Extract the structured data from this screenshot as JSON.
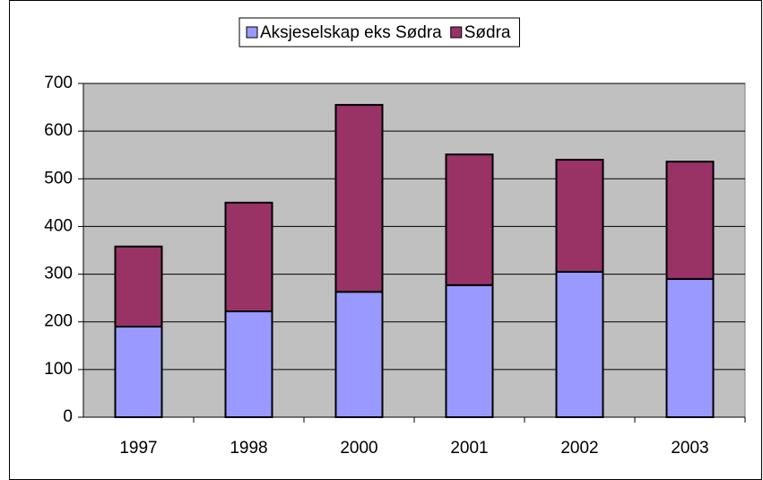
{
  "chart_data": {
    "type": "stacked_bar",
    "categories": [
      "1997",
      "1998",
      "2000",
      "2001",
      "2002",
      "2003"
    ],
    "series": [
      {
        "name": "Aksjeselskap eks Sødra",
        "color": "#9999ff",
        "values": [
          190,
          222,
          263,
          277,
          305,
          290
        ]
      },
      {
        "name": "Sødra",
        "color": "#993366",
        "values": [
          168,
          228,
          392,
          274,
          235,
          246
        ]
      }
    ],
    "ylim": [
      0,
      700
    ],
    "yticks": [
      0,
      100,
      200,
      300,
      400,
      500,
      600,
      700
    ],
    "grid": true,
    "legend": "top"
  }
}
